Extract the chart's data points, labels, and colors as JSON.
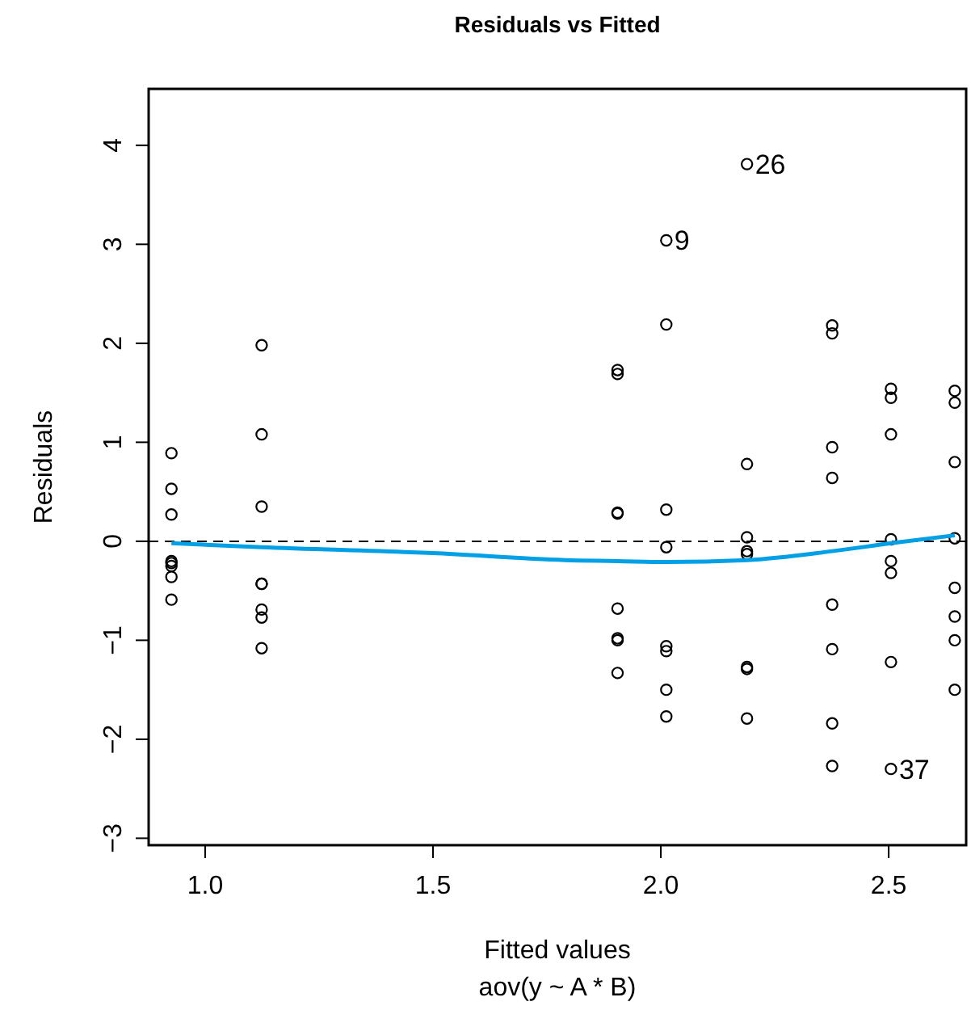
{
  "chart_data": {
    "type": "scatter",
    "title": "Residuals vs Fitted",
    "subtitle": "aov(y ~ A * B)",
    "xlabel": "Fitted values",
    "ylabel": "Residuals",
    "xlim": [
      0.876,
      2.67
    ],
    "ylim": [
      -3.07,
      4.57
    ],
    "xticks": [
      {
        "value": 1,
        "label": "1.0"
      },
      {
        "value": 1.5,
        "label": "1.5"
      },
      {
        "value": 2,
        "label": "2.0"
      },
      {
        "value": 2.5,
        "label": "2.5"
      }
    ],
    "yticks": [
      {
        "value": -3,
        "label": "−3"
      },
      {
        "value": -2,
        "label": "−2"
      },
      {
        "value": -1,
        "label": "−1"
      },
      0,
      1,
      2,
      3,
      4
    ],
    "grid": false,
    "marker": "circle",
    "series": [
      {
        "color": "#000000",
        "x": [
          0.926,
          0.926,
          0.926,
          0.926,
          0.926,
          0.926,
          0.926,
          0.926,
          1.124,
          1.124,
          1.124,
          1.124,
          1.124,
          1.124,
          1.124,
          1.124,
          1.905,
          1.905,
          1.905,
          1.905,
          1.905,
          1.905,
          1.905,
          1.905,
          2.012,
          2.012,
          2.012,
          2.012,
          2.012,
          2.012,
          2.012,
          2.012,
          2.189,
          2.189,
          2.189,
          2.189,
          2.189,
          2.189,
          2.189,
          2.189,
          2.376,
          2.376,
          2.376,
          2.376,
          2.376,
          2.376,
          2.376,
          2.376,
          2.505,
          2.505,
          2.505,
          2.505,
          2.505,
          2.505,
          2.505,
          2.505,
          2.645,
          2.645,
          2.645,
          2.645,
          2.645,
          2.645,
          2.645,
          2.645
        ],
        "values": [
          0.89,
          0.53,
          0.27,
          -0.2,
          -0.22,
          -0.25,
          -0.36,
          -0.59,
          1.98,
          1.08,
          0.35,
          -0.43,
          -0.43,
          -0.69,
          -0.77,
          -1.08,
          1.73,
          1.69,
          0.28,
          0.29,
          -0.68,
          -0.98,
          -1.0,
          -1.33,
          3.04,
          2.19,
          0.32,
          -0.06,
          -1.06,
          -1.11,
          -1.5,
          -1.77,
          3.81,
          0.78,
          0.04,
          -0.1,
          -0.13,
          -1.27,
          -1.29,
          -1.79,
          2.18,
          2.1,
          0.95,
          0.64,
          -0.64,
          -1.09,
          -1.84,
          -2.27,
          1.54,
          1.45,
          1.08,
          0.02,
          -0.2,
          -0.32,
          -1.22,
          -2.3,
          1.52,
          1.4,
          0.8,
          0.03,
          -0.47,
          -0.76,
          -1.0,
          -1.5
        ]
      },
      {
        "type": "line",
        "color": "#00a0e6",
        "marker": "none",
        "line_style": "solid",
        "x": [
          0.926,
          1.124,
          1.5,
          1.79,
          1.905,
          2.012,
          2.189,
          2.376,
          2.505,
          2.645
        ],
        "values": [
          -0.02,
          -0.06,
          -0.12,
          -0.19,
          -0.2,
          -0.21,
          -0.19,
          -0.1,
          -0.02,
          0.06
        ]
      }
    ],
    "ref_lines": [
      {
        "axis": "y",
        "value": 0,
        "color": "#000000",
        "line_style": "dashed"
      }
    ],
    "annotations": [
      {
        "text": "26",
        "x": 2.189,
        "y": 3.81
      },
      {
        "text": "9",
        "x": 2.012,
        "y": 3.04
      },
      {
        "text": "37",
        "x": 2.505,
        "y": -2.3
      }
    ]
  }
}
